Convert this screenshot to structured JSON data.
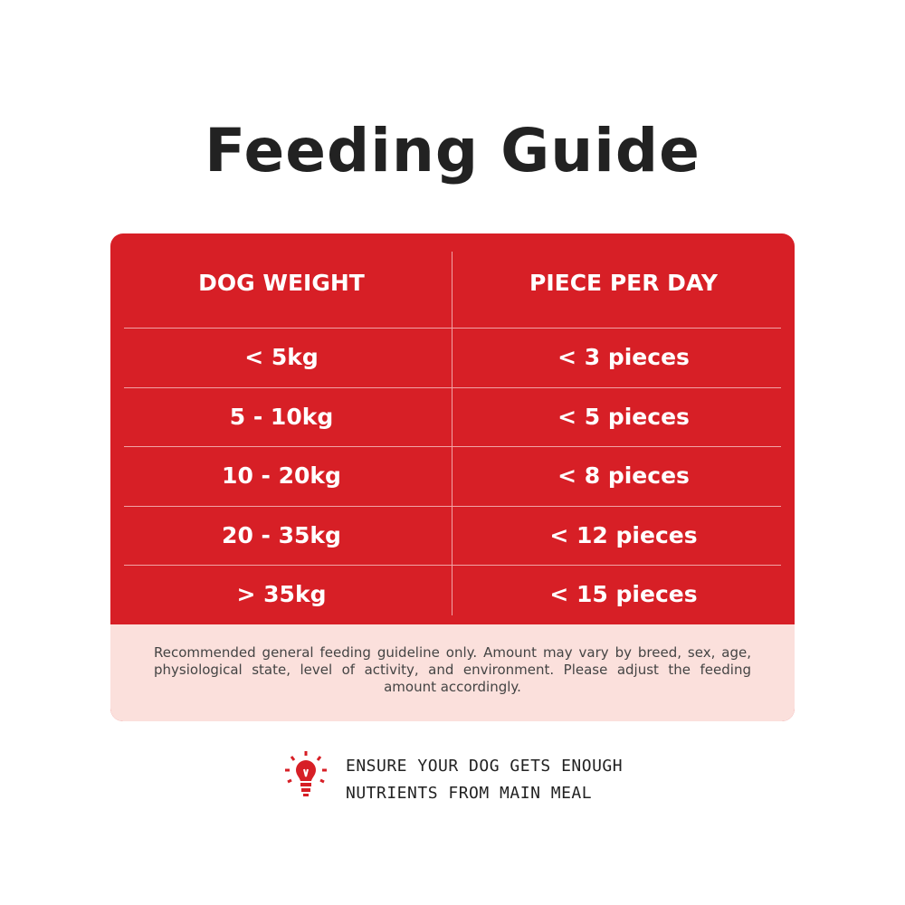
{
  "header": {
    "title": "Feeding Guide"
  },
  "table": {
    "columns": [
      "DOG WEIGHT",
      "PIECE PER DAY"
    ],
    "rows": [
      [
        "< 5kg",
        "< 3 pieces"
      ],
      [
        "5 - 10kg",
        "< 5 pieces"
      ],
      [
        "10 - 20kg",
        "< 8 pieces"
      ],
      [
        "20 - 35kg",
        "< 12 pieces"
      ],
      [
        "> 35kg",
        "< 15 pieces"
      ]
    ],
    "note": "Recommended general feeding guideline only. Amount may vary by breed, sex, age, physiological state, level of activity, and environment. Please adjust the feeding amount accordingly."
  },
  "tip": {
    "lines": [
      "ENSURE YOUR DOG GETS ENOUGH",
      "NUTRIENTS FROM MAIN MEAL"
    ]
  }
}
